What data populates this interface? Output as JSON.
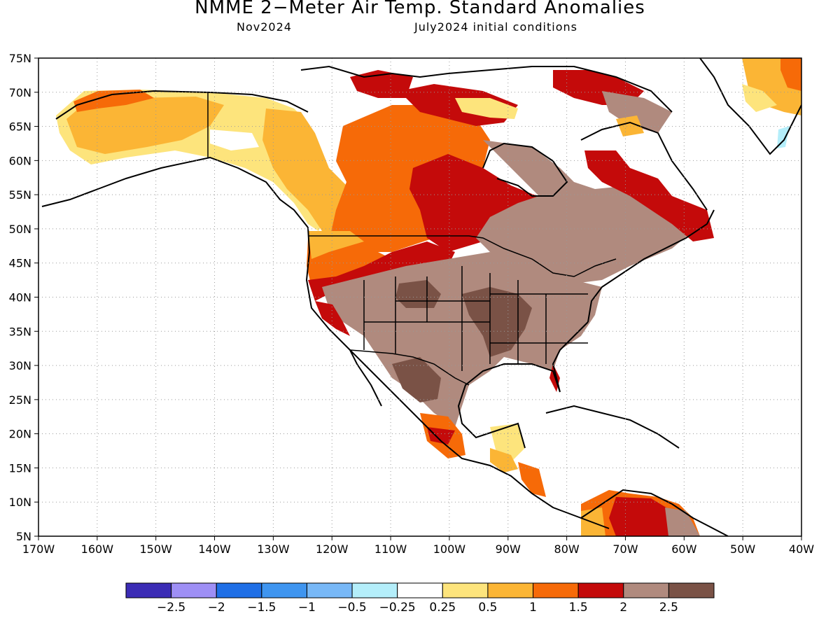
{
  "header": {
    "title": "NMME 2−Meter Air Temp. Standard Anomalies",
    "target_month": "Nov2024",
    "initial_conditions": "July2024 initial conditions"
  },
  "map": {
    "lon_range": [
      -170,
      -40
    ],
    "lat_range": [
      5,
      75
    ],
    "lon_ticks": [
      "170W",
      "160W",
      "150W",
      "140W",
      "130W",
      "120W",
      "110W",
      "100W",
      "90W",
      "80W",
      "70W",
      "60W",
      "50W",
      "40W"
    ],
    "lat_ticks": [
      "75N",
      "70N",
      "65N",
      "60N",
      "55N",
      "50N",
      "45N",
      "40N",
      "35N",
      "30N",
      "25N",
      "20N",
      "15N",
      "10N",
      "5N"
    ],
    "grid": "dotted"
  },
  "colorbar": {
    "colors": [
      "#3b2cb5",
      "#9e8ff5",
      "#1f6fe6",
      "#3f95f0",
      "#78b8f7",
      "#b4eefa",
      "#ffffff",
      "#fde47c",
      "#fbb535",
      "#f66a08",
      "#c40a0a",
      "#b08a7e",
      "#7a5246"
    ],
    "labels": [
      "−2.5",
      "−2",
      "−1.5",
      "−1",
      "−0.5",
      "−0.25",
      "0.25",
      "0.5",
      "1",
      "1.5",
      "2",
      "2.5"
    ]
  },
  "legend_colors": {
    "c025": "#fde47c",
    "c05": "#fbb535",
    "c1": "#f66a08",
    "c15": "#c40a0a",
    "c2": "#b08a7e",
    "c25": "#7a5246"
  }
}
